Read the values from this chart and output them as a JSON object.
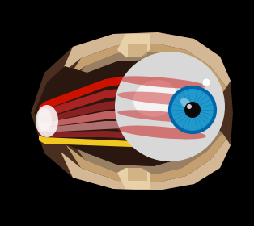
{
  "bg_color": "#000000",
  "orbit_dark": "#4a2e20",
  "orbit_med": "#5a3828",
  "bone_light": "#d4b896",
  "bone_mid": "#c4a070",
  "bone_inner": "#e8d0a8",
  "socket_dark": "#2a1810",
  "muscle_bright_red": "#cc1100",
  "muscle_med_red": "#aa2222",
  "muscle_dark_red": "#882222",
  "muscle_pink_red": "#c06060",
  "muscle_pink": "#b07070",
  "muscle_yellow": "#f0c820",
  "eyeball_base": "#d8d8d8",
  "eyeball_light": "#f0f0f0",
  "eyeball_white": "#ffffff",
  "sclera_red": "#cc2222",
  "iris_outer": "#2299cc",
  "iris_mid": "#1188bb",
  "iris_inner": "#0066aa",
  "pupil": "#0a0a0a",
  "glow_white": "#ffffff",
  "small_dot": "#e0e0e0"
}
